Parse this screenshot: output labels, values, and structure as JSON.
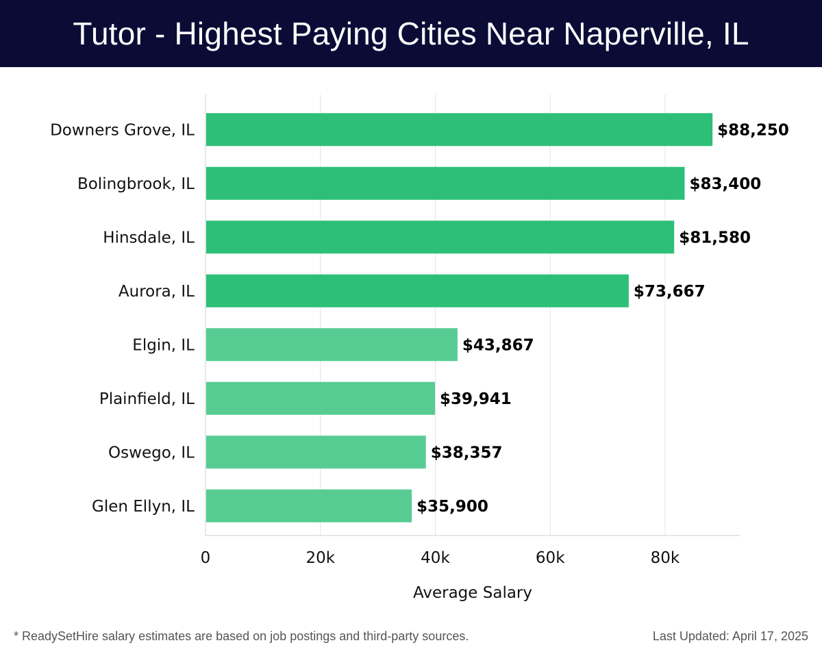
{
  "header": {
    "title": "Tutor - Highest Paying Cities Near Naperville, IL"
  },
  "chart_data": {
    "type": "bar",
    "orientation": "horizontal",
    "title": "Tutor - Highest Paying Cities Near Naperville, IL",
    "xlabel": "Average Salary",
    "ylabel": "",
    "xlim": [
      0,
      93000
    ],
    "x_ticks": [
      0,
      20000,
      40000,
      60000,
      80000
    ],
    "x_tick_labels": [
      "0",
      "20k",
      "40k",
      "60k",
      "80k"
    ],
    "grid": "vertical",
    "categories": [
      "Downers Grove, IL",
      "Bolingbrook, IL",
      "Hinsdale, IL",
      "Aurora, IL",
      "Elgin, IL",
      "Plainfield, IL",
      "Oswego, IL",
      "Glen Ellyn, IL"
    ],
    "values": [
      88250,
      83400,
      81580,
      73667,
      43867,
      39941,
      38357,
      35900
    ],
    "value_labels": [
      "$88,250",
      "$83,400",
      "$81,580",
      "$73,667",
      "$43,867",
      "$39,941",
      "$38,357",
      "$35,900"
    ],
    "colors": {
      "top": "#2dbf78",
      "rest": "#56cc93"
    }
  },
  "footer": {
    "note": "* ReadySetHire salary estimates are based on job postings and third-party sources.",
    "updated": "Last Updated: April 17, 2025"
  }
}
